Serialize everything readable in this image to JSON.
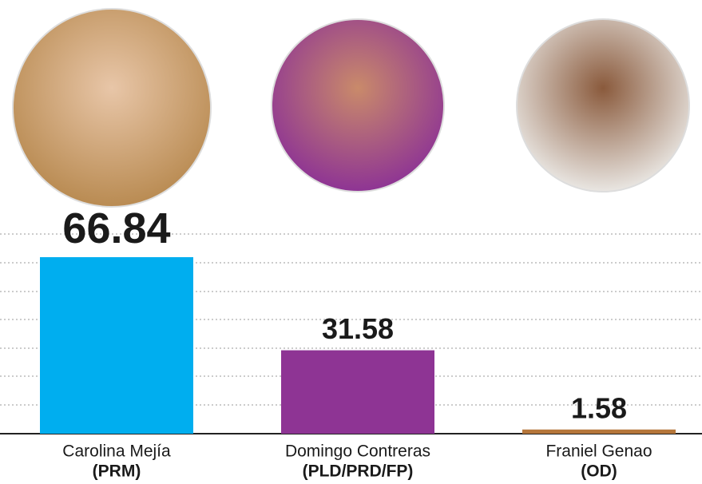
{
  "chart_data": {
    "type": "bar",
    "categories": [
      "Carolina Mejía",
      "Domingo Contreras",
      "Franiel Genao"
    ],
    "parties": [
      "(PRM)",
      "(PLD/PRD/FP)",
      "(OD)"
    ],
    "values": [
      66.84,
      31.58,
      1.58
    ],
    "colors": [
      "#00aeef",
      "#8e3494",
      "#b5763a"
    ],
    "ylim": [
      0,
      75
    ]
  }
}
